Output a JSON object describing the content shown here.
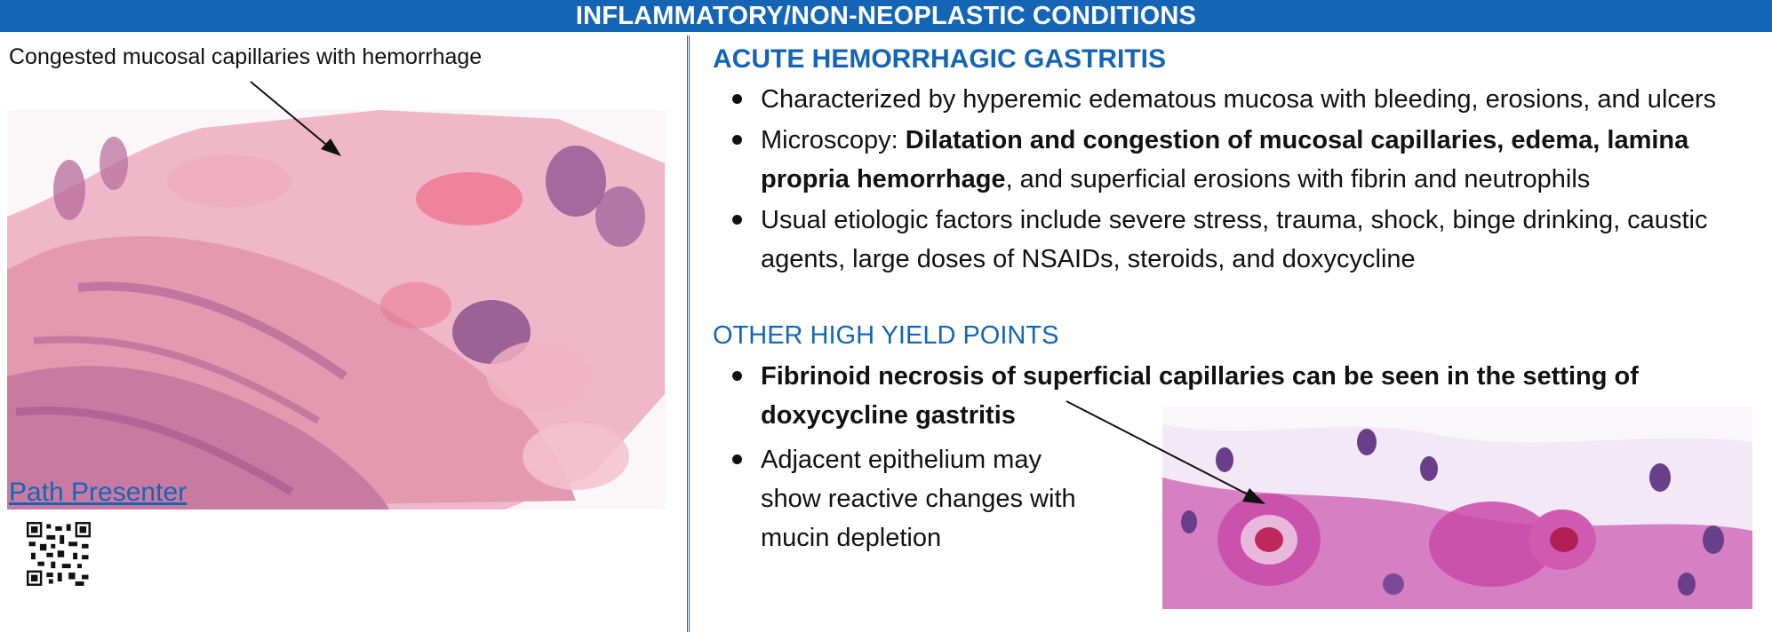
{
  "header": {
    "title": "INFLAMMATORY/NON-NEOPLASTIC CONDITIONS"
  },
  "left_panel": {
    "caption": "Congested mucosal capillaries with hemorrhage",
    "link_text": "Path Presenter"
  },
  "right_panel": {
    "title": "ACUTE HEMORRHAGIC GASTRITIS",
    "bullets": {
      "b1": "Characterized by hyperemic edematous mucosa with bleeding, erosions, and ulcers",
      "b2_prefix": "Microscopy: ",
      "b2_bold": "Dilatation and congestion of mucosal capillaries, edema, lamina propria hemorrhage",
      "b2_rest": ", and superficial erosions with fibrin and neutrophils",
      "b3": "Usual etiologic factors include severe stress, trauma, shock, binge drinking, caustic agents, large doses of NSAIDs, steroids, and doxycycline"
    },
    "subtitle": "OTHER HIGH YIELD POINTS",
    "points": {
      "p1": "Fibrinoid necrosis of superficial capillaries can be seen in the setting of doxycycline gastritis",
      "p2": "Adjacent epithelium may show reactive changes with mucin depletion"
    }
  },
  "colors": {
    "accent": "#1565b7",
    "stain_pink": "#e9a3b8",
    "stain_purple": "#8a4a8f"
  },
  "icons": {
    "qr": "qr-code-icon"
  }
}
